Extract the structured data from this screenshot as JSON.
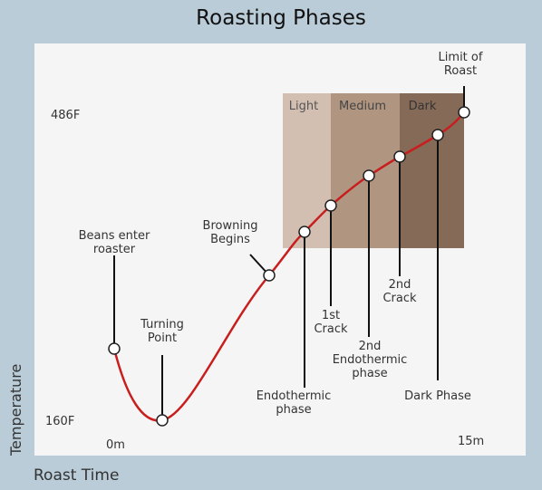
{
  "title": "Roasting Phases",
  "axes": {
    "y_label": "Temperature",
    "x_label": "Roast Time",
    "y_max": "486F",
    "y_min": "160F",
    "x_min": "0m",
    "x_max": "15m"
  },
  "phases": [
    "Light",
    "Medium",
    "Dark"
  ],
  "events": [
    {
      "lines": [
        "Beans enter",
        "roaster"
      ]
    },
    {
      "lines": [
        "Turning",
        "Point"
      ]
    },
    {
      "lines": [
        "Browning",
        "Begins"
      ]
    },
    {
      "lines": [
        "Endothermic",
        "phase"
      ]
    },
    {
      "lines": [
        "1st",
        "Crack"
      ]
    },
    {
      "lines": [
        "2nd",
        "Endothermic",
        "phase"
      ]
    },
    {
      "lines": [
        "2nd",
        "Crack"
      ]
    },
    {
      "lines": [
        "Dark Phase"
      ]
    },
    {
      "lines": [
        "Limit of",
        "Roast"
      ]
    }
  ]
}
